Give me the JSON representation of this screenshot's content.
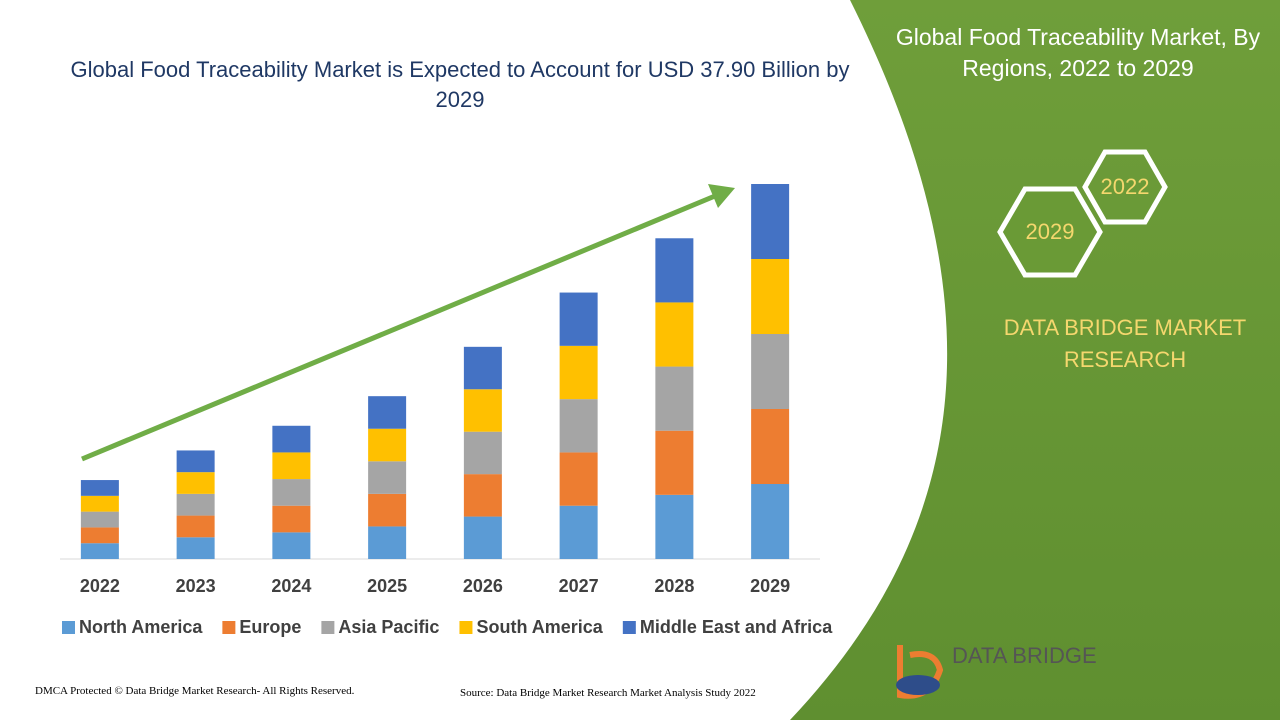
{
  "chart_data": {
    "type": "stacked-bar",
    "title": "Global Food Traceability Market is Expected to Account for USD 37.90 Billion by 2029",
    "categories": [
      "2022",
      "2023",
      "2024",
      "2025",
      "2026",
      "2027",
      "2028",
      "2029"
    ],
    "series": [
      {
        "name": "North America",
        "color": "#5b9bd5",
        "values": [
          1.6,
          2.2,
          2.7,
          3.3,
          4.3,
          5.4,
          6.5,
          7.6
        ]
      },
      {
        "name": "Europe",
        "color": "#ed7d31",
        "values": [
          1.6,
          2.2,
          2.7,
          3.3,
          4.3,
          5.4,
          6.5,
          7.6
        ]
      },
      {
        "name": "Asia Pacific",
        "color": "#a5a5a5",
        "values": [
          1.6,
          2.2,
          2.7,
          3.3,
          4.3,
          5.4,
          6.5,
          7.6
        ]
      },
      {
        "name": "South America",
        "color": "#ffc000",
        "values": [
          1.6,
          2.2,
          2.7,
          3.3,
          4.3,
          5.4,
          6.5,
          7.6
        ]
      },
      {
        "name": "Middle East and Africa",
        "color": "#4472c4",
        "values": [
          1.6,
          2.2,
          2.7,
          3.3,
          4.3,
          5.4,
          6.5,
          7.6
        ]
      }
    ]
  },
  "panel": {
    "title": "Global Food Traceability Market, By Regions, 2022 to 2029",
    "hex_top": "2022",
    "hex_bottom": "2029",
    "brand": "DATA BRIDGE MARKET RESEARCH"
  },
  "logo": {
    "text": "DATA BRIDGE"
  },
  "footer": {
    "copyright": "DMCA Protected © Data Bridge Market Research- All Rights Reserved.",
    "source": "Source: Data Bridge Market Research Market Analysis Study 2022"
  }
}
